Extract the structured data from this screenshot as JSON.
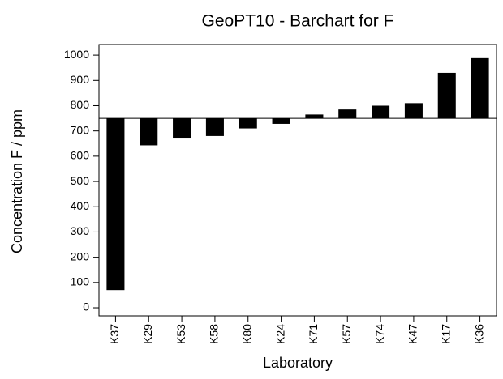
{
  "chart_data": {
    "type": "bar",
    "title": "GeoPT10 - Barchart for F",
    "x_label": "Laboratory",
    "y_label": "Concentration F / ppm",
    "categories": [
      "K37",
      "K29",
      "K53",
      "K58",
      "K80",
      "K24",
      "K71",
      "K57",
      "K74",
      "K47",
      "K17",
      "K36"
    ],
    "values": [
      70,
      643,
      670,
      680,
      710,
      728,
      765,
      785,
      800,
      810,
      930,
      988
    ],
    "reference_line": 750,
    "color": "#000000",
    "ylim": [
      -32,
      1042
    ],
    "yticks": [
      0,
      100,
      200,
      300,
      400,
      500,
      600,
      700,
      800,
      900,
      1000
    ]
  }
}
